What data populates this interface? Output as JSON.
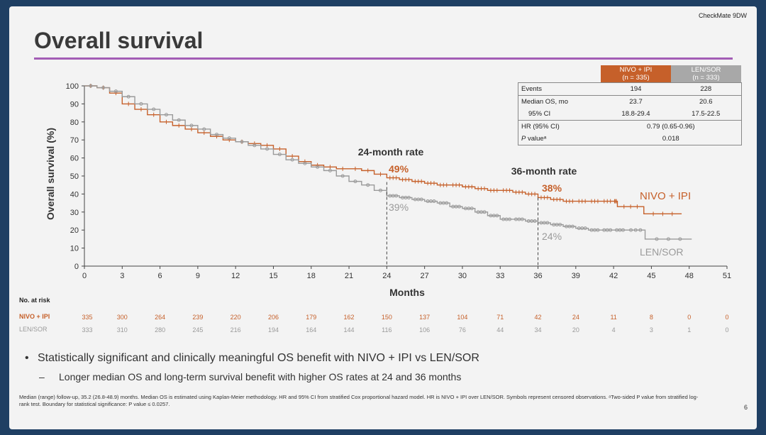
{
  "header": {
    "brand": "CheckMate 9DW",
    "title": "Overall survival"
  },
  "stats_table": {
    "headers": [
      {
        "line1": "NIVO + IPI",
        "line2": "(n = 335)"
      },
      {
        "line1": "LEN/SOR",
        "line2": "(n = 333)"
      }
    ],
    "events": {
      "label": "Events",
      "nivo": "194",
      "len": "228"
    },
    "median": {
      "label": "Median OS, mo",
      "nivo": "23.7",
      "len": "20.6"
    },
    "ci": {
      "label": "95% CI",
      "nivo": "18.8-29.4",
      "len": "17.5-22.5"
    },
    "hr": {
      "label": "HR (95% CI)",
      "value": "0.79 (0.65-0.96)"
    },
    "p": {
      "label_italic": "P",
      "label_rest": " valueᵃ",
      "value": "0.018"
    }
  },
  "colors": {
    "nivo": "#c6602a",
    "len": "#9a9a9a",
    "accent": "#a35db5"
  },
  "chart_data": {
    "type": "line",
    "xlabel": "Months",
    "ylabel": "Overall survival (%)",
    "xlim": [
      0,
      51
    ],
    "ylim": [
      0,
      100
    ],
    "xticks": [
      0,
      3,
      6,
      9,
      12,
      15,
      18,
      21,
      24,
      27,
      30,
      33,
      36,
      39,
      42,
      45,
      48,
      51
    ],
    "yticks": [
      0,
      10,
      20,
      30,
      40,
      50,
      60,
      70,
      80,
      90,
      100
    ],
    "series": [
      {
        "name": "NIVO + IPI",
        "color": "#c6602a",
        "points": [
          [
            0,
            100
          ],
          [
            1,
            99
          ],
          [
            2,
            96
          ],
          [
            3,
            90
          ],
          [
            4,
            87
          ],
          [
            5,
            84
          ],
          [
            6,
            80
          ],
          [
            7,
            78
          ],
          [
            8,
            76
          ],
          [
            9,
            74
          ],
          [
            10,
            72
          ],
          [
            11,
            70
          ],
          [
            12,
            69
          ],
          [
            13,
            68
          ],
          [
            14,
            67
          ],
          [
            15,
            65
          ],
          [
            16,
            61
          ],
          [
            17,
            58
          ],
          [
            18,
            56
          ],
          [
            19,
            55
          ],
          [
            20,
            54
          ],
          [
            21,
            54
          ],
          [
            22,
            53
          ],
          [
            23,
            51
          ],
          [
            24,
            49
          ],
          [
            25,
            48
          ],
          [
            26,
            47
          ],
          [
            27,
            46
          ],
          [
            28,
            45
          ],
          [
            29,
            45
          ],
          [
            30,
            44
          ],
          [
            31,
            43
          ],
          [
            32,
            42
          ],
          [
            33,
            42
          ],
          [
            34,
            41
          ],
          [
            35,
            40
          ],
          [
            36,
            38
          ],
          [
            37,
            37
          ],
          [
            38,
            36
          ],
          [
            39,
            36
          ],
          [
            40,
            36
          ],
          [
            41,
            36
          ],
          [
            42,
            36
          ],
          [
            42.3,
            36
          ],
          [
            42.3,
            33
          ],
          [
            44.4,
            33
          ],
          [
            44.4,
            29
          ],
          [
            47.4,
            29
          ]
        ]
      },
      {
        "name": "LEN/SOR",
        "color": "#9a9a9a",
        "points": [
          [
            0,
            100
          ],
          [
            1,
            99
          ],
          [
            2,
            97
          ],
          [
            3,
            94
          ],
          [
            4,
            90
          ],
          [
            5,
            87
          ],
          [
            6,
            84
          ],
          [
            7,
            81
          ],
          [
            8,
            78
          ],
          [
            9,
            76
          ],
          [
            10,
            73
          ],
          [
            11,
            71
          ],
          [
            12,
            69
          ],
          [
            13,
            67
          ],
          [
            14,
            65
          ],
          [
            15,
            62
          ],
          [
            16,
            59
          ],
          [
            17,
            57
          ],
          [
            18,
            55
          ],
          [
            19,
            53
          ],
          [
            20,
            50
          ],
          [
            21,
            47
          ],
          [
            22,
            45
          ],
          [
            23,
            42
          ],
          [
            24,
            39
          ],
          [
            25,
            38
          ],
          [
            26,
            37
          ],
          [
            27,
            36
          ],
          [
            28,
            35
          ],
          [
            29,
            33
          ],
          [
            30,
            32
          ],
          [
            31,
            30
          ],
          [
            32,
            28
          ],
          [
            33,
            26
          ],
          [
            34,
            26
          ],
          [
            35,
            25
          ],
          [
            36,
            24
          ],
          [
            37,
            23
          ],
          [
            38,
            22
          ],
          [
            39,
            21
          ],
          [
            40,
            20
          ],
          [
            41,
            20
          ],
          [
            42,
            20
          ],
          [
            43,
            20
          ],
          [
            44.5,
            20
          ],
          [
            44.5,
            15
          ],
          [
            48.2,
            15
          ]
        ]
      }
    ],
    "annotations": {
      "rate24_title": "24-month rate",
      "rate24_nivo": "49%",
      "rate24_len": "39%",
      "rate36_title": "36-month rate",
      "rate36_nivo": "38%",
      "rate36_len": "24%",
      "label_nivo": "NIVO + IPI",
      "label_len": "LEN/SOR"
    }
  },
  "at_risk": {
    "heading": "No. at risk",
    "rows": [
      {
        "label": "NIVO + IPI",
        "color": "#c6602a",
        "values": [
          "335",
          "300",
          "264",
          "239",
          "220",
          "206",
          "179",
          "162",
          "150",
          "137",
          "104",
          "71",
          "42",
          "24",
          "11",
          "8",
          "0",
          "0"
        ]
      },
      {
        "label": "LEN/SOR",
        "color": "#9a9a9a",
        "values": [
          "333",
          "310",
          "280",
          "245",
          "216",
          "194",
          "164",
          "144",
          "116",
          "106",
          "76",
          "44",
          "34",
          "20",
          "4",
          "3",
          "1",
          "0"
        ]
      }
    ]
  },
  "bullets": {
    "main": "Statistically significant and clinically meaningful OS benefit with NIVO + IPI vs LEN/SOR",
    "sub": "Longer median OS and long-term survival benefit with higher OS rates at 24 and 36 months"
  },
  "footnote": "Median (range) follow-up, 35.2 (26.8-48.9) months. Median OS is estimated using Kaplan-Meier methodology. HR and 95% CI from stratified Cox proportional hazard model. HR is NIVO + IPI over LEN/SOR. Symbols represent censored observations. ᵃTwo-sided P value from stratified log-rank test. Boundary for statistical significance: P value ≤ 0.0257.",
  "page_number": "6"
}
